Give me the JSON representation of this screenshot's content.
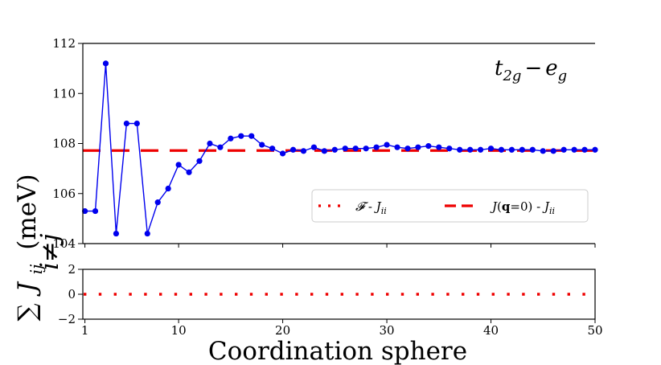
{
  "chart_data": {
    "type": "line",
    "xlabel": "Coordination sphere",
    "ylabel_top": {
      "main": "J",
      "sub": "ij",
      "unit": "(meV)",
      "sum_symbol": "∑",
      "sum_sub": "i≠j"
    },
    "annotation": {
      "base1": "t",
      "sub1": "2g",
      "minus": "−",
      "base2": "e",
      "sub2": "g"
    },
    "xlim": [
      0.8,
      50
    ],
    "xticks": [
      1,
      10,
      20,
      30,
      40,
      50
    ],
    "top_panel": {
      "ylim": [
        104,
        112
      ],
      "yticks": [
        104,
        106,
        108,
        110,
        112
      ],
      "series": [
        {
          "name": "sum_J_ij",
          "color": "#0000ee",
          "style": "line-markers",
          "x": [
            1,
            2,
            3,
            4,
            5,
            6,
            7,
            8,
            9,
            10,
            11,
            12,
            13,
            14,
            15,
            16,
            17,
            18,
            19,
            20,
            21,
            22,
            23,
            24,
            25,
            26,
            27,
            28,
            29,
            30,
            31,
            32,
            33,
            34,
            35,
            36,
            37,
            38,
            39,
            40,
            41,
            42,
            43,
            44,
            45,
            46,
            47,
            48,
            49,
            50
          ],
          "y": [
            105.3,
            105.3,
            111.2,
            104.4,
            108.8,
            108.8,
            104.4,
            105.65,
            106.2,
            107.15,
            106.85,
            107.3,
            108.0,
            107.85,
            108.2,
            108.3,
            108.3,
            107.95,
            107.8,
            107.6,
            107.75,
            107.7,
            107.85,
            107.7,
            107.75,
            107.8,
            107.8,
            107.8,
            107.85,
            107.95,
            107.85,
            107.8,
            107.85,
            107.9,
            107.85,
            107.8,
            107.75,
            107.75,
            107.75,
            107.8,
            107.75,
            107.75,
            107.75,
            107.75,
            107.7,
            107.7,
            107.75,
            107.75,
            107.75,
            107.75
          ]
        },
        {
          "name": "J(q=0) - J_ii",
          "color": "#ee0000",
          "style": "dashed",
          "constant": 107.72
        }
      ],
      "legend": {
        "position": "lower-right",
        "entries": [
          {
            "style": "dotted",
            "color": "#ee0000",
            "parts": [
              {
                "t": "𝓕",
                "i": true
              },
              {
                "t": " - "
              },
              {
                "t": "J",
                "i": true
              },
              {
                "t": "ii",
                "i": true,
                "sub": true
              }
            ]
          },
          {
            "style": "dashed",
            "color": "#ee0000",
            "parts": [
              {
                "t": "J",
                "i": true
              },
              {
                "t": "("
              },
              {
                "t": "q",
                "b": true
              },
              {
                "t": "=0) - "
              },
              {
                "t": "J",
                "i": true
              },
              {
                "t": "ii",
                "i": true,
                "sub": true
              }
            ]
          }
        ]
      }
    },
    "bottom_panel": {
      "ylim": [
        -2,
        2
      ],
      "yticks": [
        -2,
        0,
        2
      ],
      "ytick_labels": [
        "−2",
        "0",
        "2"
      ],
      "series": [
        {
          "name": "F - J_ii",
          "color": "#ee0000",
          "style": "dotted",
          "constant": 0
        }
      ]
    }
  }
}
